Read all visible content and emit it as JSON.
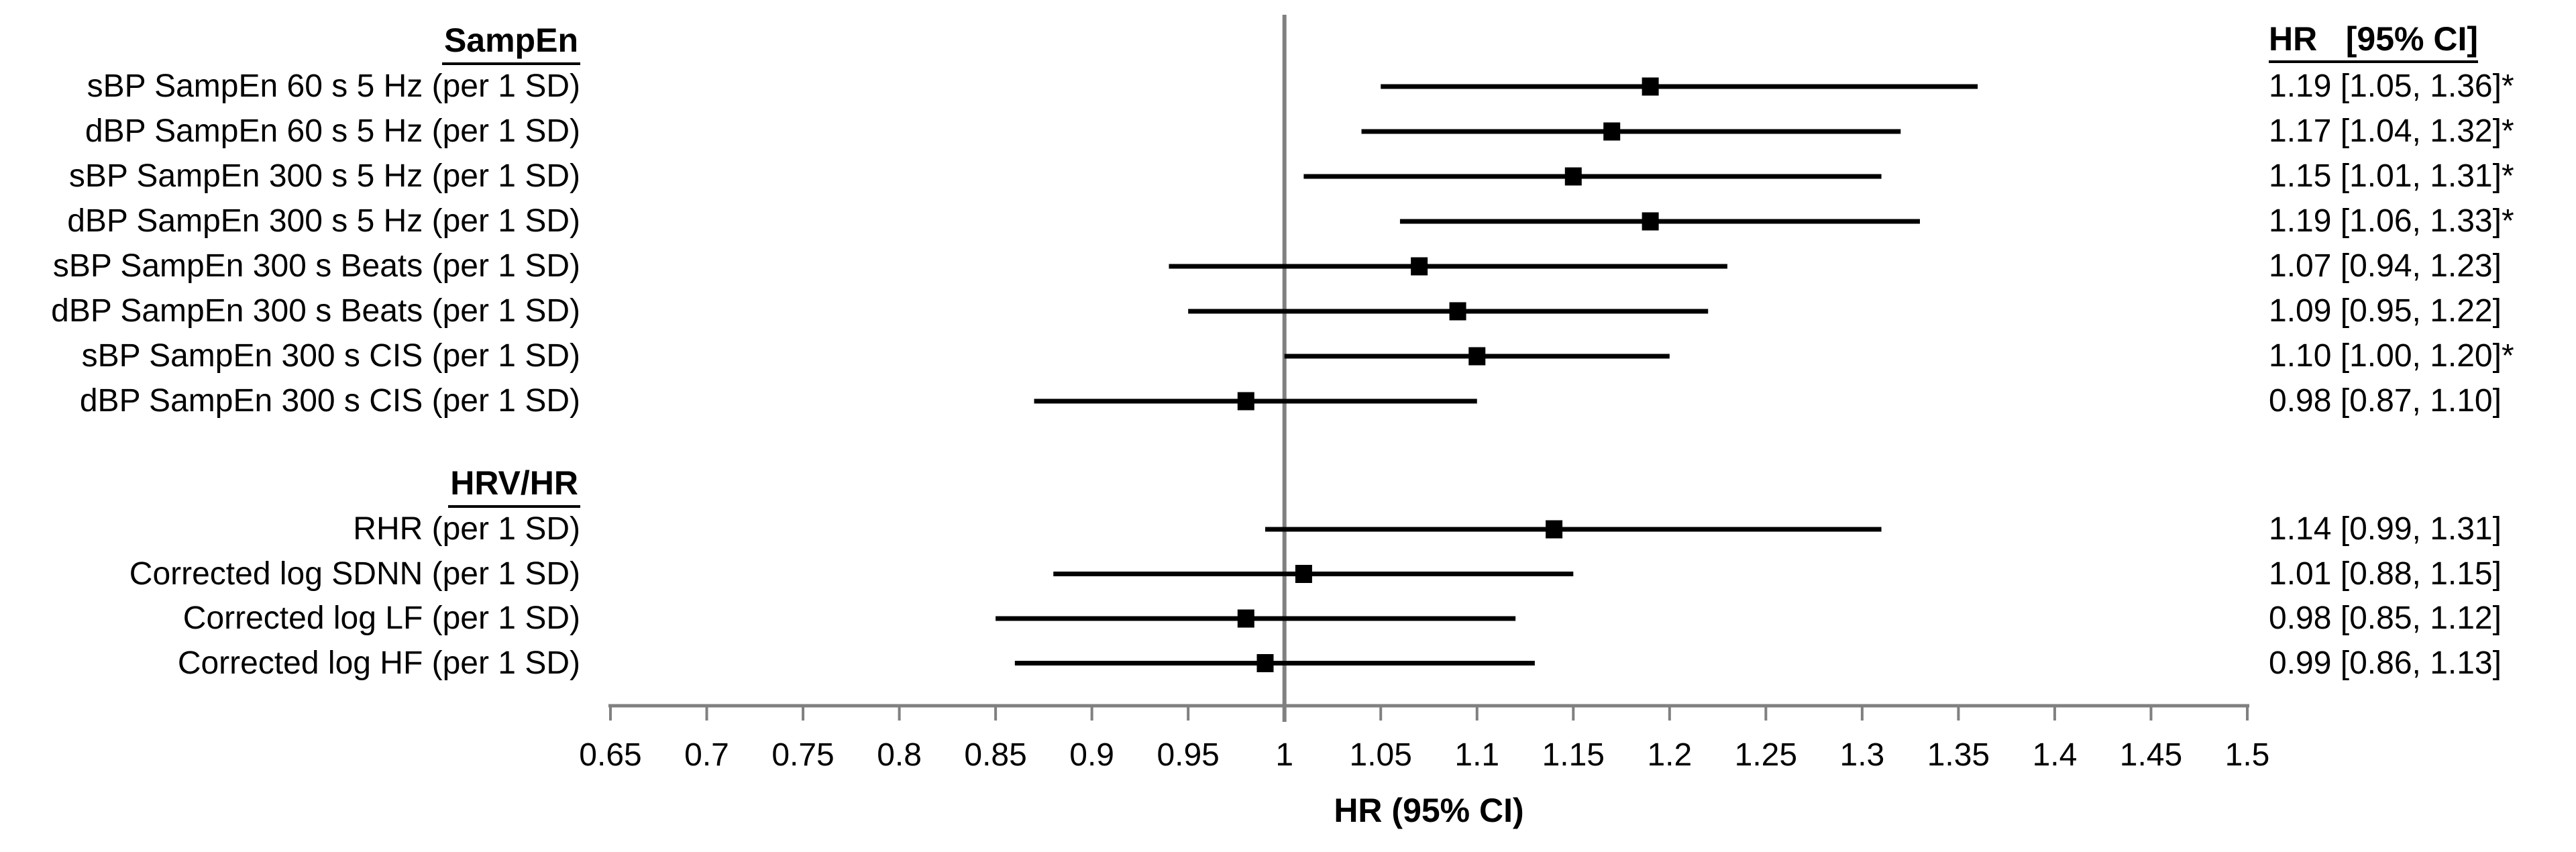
{
  "page": {
    "background": "#ffffff"
  },
  "chart_data": {
    "type": "scatter",
    "variant": "forest-plot",
    "title": "",
    "xlabel": "HR (95% CI)",
    "right_column_header": {
      "left": "HR",
      "right": "[95% CI]"
    },
    "xlim": [
      0.65,
      1.5
    ],
    "xticks": [
      0.65,
      0.7,
      0.75,
      0.8,
      0.85,
      0.9,
      0.95,
      1,
      1.05,
      1.1,
      1.15,
      1.2,
      1.25,
      1.3,
      1.35,
      1.4,
      1.45,
      1.5
    ],
    "xtick_labels": [
      "0.65",
      "0.7",
      "0.75",
      "0.8",
      "0.85",
      "0.9",
      "0.95",
      "1",
      "1.05",
      "1.1",
      "1.15",
      "1.2",
      "1.25",
      "1.3",
      "1.35",
      "1.4",
      "1.45",
      "1.5"
    ],
    "reference_line_x": 1,
    "grid": false,
    "legend": false,
    "groups": [
      {
        "header": "SampEn",
        "rows": [
          {
            "label": "sBP SampEn 60 s 5 Hz (per 1 SD)",
            "hr": 1.19,
            "lo": 1.05,
            "hi": 1.36,
            "text": "1.19 [1.05, 1.36]*",
            "significant": true
          },
          {
            "label": "dBP SampEn 60 s 5 Hz (per 1 SD)",
            "hr": 1.17,
            "lo": 1.04,
            "hi": 1.32,
            "text": "1.17 [1.04, 1.32]*",
            "significant": true
          },
          {
            "label": "sBP SampEn 300 s 5 Hz (per 1 SD)",
            "hr": 1.15,
            "lo": 1.01,
            "hi": 1.31,
            "text": "1.15 [1.01, 1.31]*",
            "significant": true
          },
          {
            "label": "dBP SampEn 300 s 5 Hz (per 1 SD)",
            "hr": 1.19,
            "lo": 1.06,
            "hi": 1.33,
            "text": "1.19 [1.06, 1.33]*",
            "significant": true
          },
          {
            "label": "sBP SampEn 300 s Beats (per 1 SD)",
            "hr": 1.07,
            "lo": 0.94,
            "hi": 1.23,
            "text": "1.07 [0.94, 1.23]",
            "significant": false
          },
          {
            "label": "dBP SampEn 300 s Beats (per 1 SD)",
            "hr": 1.09,
            "lo": 0.95,
            "hi": 1.22,
            "text": "1.09 [0.95, 1.22]",
            "significant": false
          },
          {
            "label": "sBP SampEn 300 s CIS (per 1 SD)",
            "hr": 1.1,
            "lo": 1.0,
            "hi": 1.2,
            "text": "1.10 [1.00, 1.20]*",
            "significant": true
          },
          {
            "label": "dBP SampEn 300 s CIS (per 1 SD)",
            "hr": 0.98,
            "lo": 0.87,
            "hi": 1.1,
            "text": "0.98 [0.87, 1.10]",
            "significant": false
          }
        ]
      },
      {
        "header": "HRV/HR",
        "rows": [
          {
            "label": "RHR (per 1 SD)",
            "hr": 1.14,
            "lo": 0.99,
            "hi": 1.31,
            "text": "1.14 [0.99, 1.31]",
            "significant": false
          },
          {
            "label": "Corrected log SDNN (per 1 SD)",
            "hr": 1.01,
            "lo": 0.88,
            "hi": 1.15,
            "text": "1.01 [0.88, 1.15]",
            "significant": false
          },
          {
            "label": "Corrected log LF (per 1 SD)",
            "hr": 0.98,
            "lo": 0.85,
            "hi": 1.12,
            "text": "0.98 [0.85, 1.12]",
            "significant": false
          },
          {
            "label": "Corrected log HF (per 1 SD)",
            "hr": 0.99,
            "lo": 0.86,
            "hi": 1.13,
            "text": "0.99 [0.86, 1.13]",
            "significant": false
          }
        ]
      }
    ],
    "colors": {
      "whisker": "#000000",
      "marker": "#000000",
      "axis": "#808080",
      "reference_line": "#808080",
      "text": "#000000",
      "background": "#ffffff"
    }
  }
}
